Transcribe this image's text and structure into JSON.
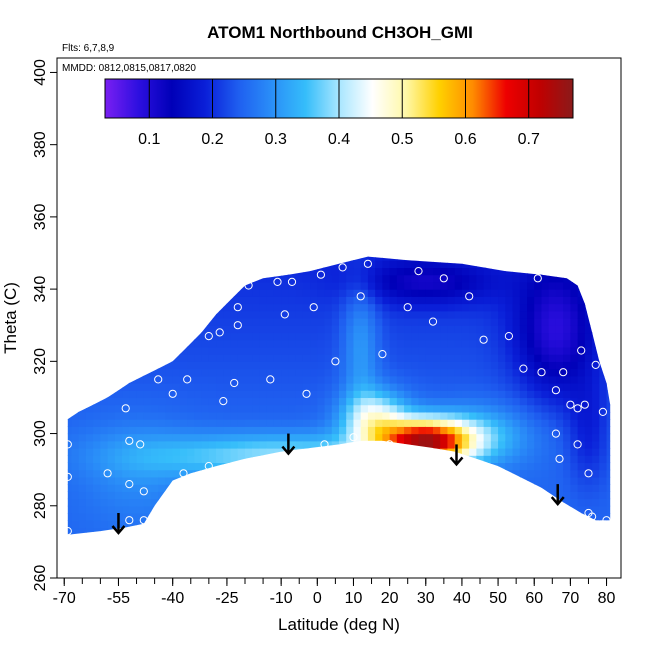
{
  "chart_data": {
    "type": "heatmap",
    "title": "ATOM1 Northbound CH3OH_GMI",
    "annotations": [
      "Flts: 6,7,8,9",
      "MMDD: 0812,0815,0817,0820"
    ],
    "xlabel": "Latitude (deg N)",
    "ylabel": "Theta (C)",
    "xlim": [
      -72,
      84
    ],
    "ylim": [
      260,
      404
    ],
    "x_ticks": [
      -70,
      -55,
      -40,
      -25,
      -10,
      0,
      10,
      20,
      30,
      40,
      50,
      60,
      70,
      80
    ],
    "y_ticks": [
      260,
      280,
      300,
      320,
      340,
      360,
      380,
      400
    ],
    "colorbar": {
      "range": [
        0.03,
        0.77
      ],
      "ticks": [
        0.1,
        0.2,
        0.3,
        0.4,
        0.5,
        0.6,
        0.7
      ],
      "colors": [
        "#7a1ff2",
        "#2d0fe0",
        "#0000b8",
        "#0a1fd8",
        "#1f5ff0",
        "#2a8ff8",
        "#35bdfa",
        "#a8e6ff",
        "#ffffff",
        "#fff8a8",
        "#ffd000",
        "#ff8c00",
        "#ee0000",
        "#c00000",
        "#8b1a1a"
      ]
    },
    "flight_arrows_lat": [
      -55,
      -8,
      38.5,
      66.5
    ],
    "arrow_theta": 284,
    "observations": [
      [
        -68,
        309
      ],
      [
        -69,
        297
      ],
      [
        -69,
        288
      ],
      [
        -58,
        289
      ],
      [
        -69,
        273
      ],
      [
        -57,
        272
      ],
      [
        -53,
        307
      ],
      [
        -52,
        298
      ],
      [
        -49,
        297
      ],
      [
        -52,
        286
      ],
      [
        -48,
        284
      ],
      [
        -52,
        276
      ],
      [
        -48,
        276
      ],
      [
        -44,
        315
      ],
      [
        -40,
        311
      ],
      [
        -36,
        315
      ],
      [
        -37,
        289
      ],
      [
        -30,
        291
      ],
      [
        -26,
        309
      ],
      [
        -27,
        328
      ],
      [
        -30,
        327
      ],
      [
        -23,
        314
      ],
      [
        -22,
        330
      ],
      [
        -22,
        335
      ],
      [
        -19,
        341
      ],
      [
        -11,
        342
      ],
      [
        -13,
        315
      ],
      [
        -9,
        333
      ],
      [
        -7,
        342
      ],
      [
        -3,
        311
      ],
      [
        -1,
        335
      ],
      [
        1,
        344
      ],
      [
        7,
        346
      ],
      [
        5,
        320
      ],
      [
        12,
        338
      ],
      [
        14,
        347
      ],
      [
        18,
        322
      ],
      [
        25,
        335
      ],
      [
        28,
        345
      ],
      [
        32,
        331
      ],
      [
        35,
        343
      ],
      [
        42,
        338
      ],
      [
        46,
        326
      ],
      [
        53,
        327
      ],
      [
        57,
        318
      ],
      [
        61,
        343
      ],
      [
        62,
        317
      ],
      [
        66,
        312
      ],
      [
        66,
        300
      ],
      [
        67,
        293
      ],
      [
        68,
        317
      ],
      [
        70,
        308
      ],
      [
        72,
        307
      ],
      [
        73,
        323
      ],
      [
        74,
        308
      ],
      [
        72,
        297
      ],
      [
        75,
        289
      ],
      [
        77,
        319
      ],
      [
        79,
        306
      ],
      [
        80,
        276
      ],
      [
        75,
        278
      ],
      [
        76,
        277
      ],
      [
        2,
        297
      ],
      [
        10,
        299
      ],
      [
        32,
        294
      ],
      [
        20,
        297
      ]
    ]
  }
}
